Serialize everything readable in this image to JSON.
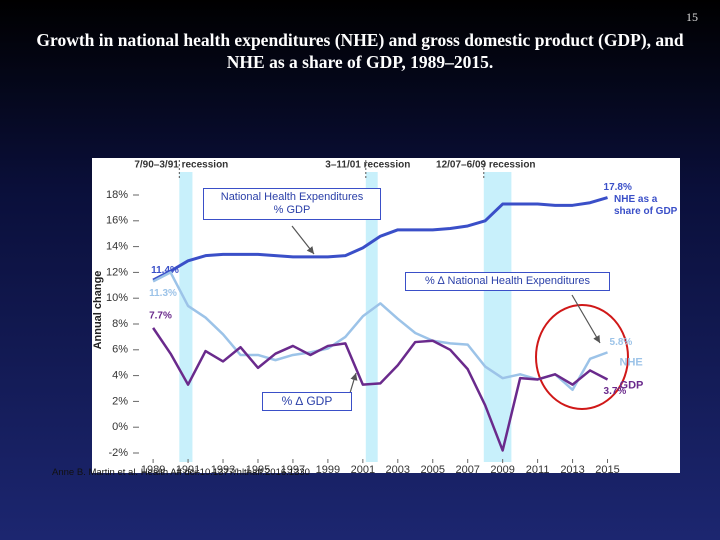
{
  "page_number": "15",
  "title": "Growth in national health expenditures (NHE) and gross domestic product (GDP), and NHE as a share of GDP, 1989–2015.",
  "source": "Anne B. Martin et al. Health Aff doi:10.1377/hlthaff.2016.1330",
  "callouts": [
    [
      "National Health Expenditures",
      "% GDP"
    ],
    [
      "% ∆ National Health Expenditures"
    ],
    [
      "% ∆ GDP"
    ]
  ],
  "chart_data": {
    "type": "line",
    "y_label": "Annual change",
    "x": [
      1989,
      1990,
      1991,
      1992,
      1993,
      1994,
      1995,
      1996,
      1997,
      1998,
      1999,
      2000,
      2001,
      2002,
      2003,
      2004,
      2005,
      2006,
      2007,
      2008,
      2009,
      2010,
      2011,
      2012,
      2013,
      2014,
      2015
    ],
    "xlim": [
      1988.25,
      2016
    ],
    "xticks": [
      1989,
      1991,
      1993,
      1995,
      1997,
      1999,
      2001,
      2003,
      2005,
      2007,
      2009,
      2011,
      2013,
      2015
    ],
    "ylim": [
      -2,
      18
    ],
    "yticks": [
      {
        "value": -2,
        "label": "-2%"
      },
      {
        "value": 0,
        "label": "0%"
      },
      {
        "value": 2,
        "label": "2%"
      },
      {
        "value": 4,
        "label": "4%"
      },
      {
        "value": 6,
        "label": "6%"
      },
      {
        "value": 8,
        "label": "8%"
      },
      {
        "value": 10,
        "label": "10%"
      },
      {
        "value": 12,
        "label": "12%"
      },
      {
        "value": 14,
        "label": "14%"
      },
      {
        "value": 16,
        "label": "16%"
      },
      {
        "value": 18,
        "label": "18%"
      }
    ],
    "grid": false,
    "recessions": [
      {
        "label": "7/90–3/91 recession",
        "start": 1990.5,
        "end": 1991.25
      },
      {
        "label": "3–11/01 recession",
        "start": 2001.17,
        "end": 2001.85
      },
      {
        "label": "12/07–6/09 recession",
        "start": 2007.92,
        "end": 2009.5
      }
    ],
    "series": [
      {
        "name": "NHE as a share of GDP",
        "color": "#3a4fc8",
        "values": [
          11.4,
          12.1,
          12.9,
          13.3,
          13.4,
          13.4,
          13.4,
          13.3,
          13.2,
          13.2,
          13.2,
          13.3,
          13.9,
          14.8,
          15.3,
          15.3,
          15.3,
          15.4,
          15.6,
          16.0,
          17.3,
          17.3,
          17.3,
          17.2,
          17.2,
          17.4,
          17.8
        ],
        "value_labels": [
          "11.4%",
          null,
          null,
          null,
          null,
          null,
          null,
          null,
          null,
          null,
          null,
          null,
          null,
          null,
          null,
          null,
          null,
          null,
          null,
          null,
          null,
          null,
          null,
          null,
          null,
          null,
          "17.8%"
        ]
      },
      {
        "name": "NHE",
        "color": "#9cc3e8",
        "values": [
          11.3,
          12.0,
          9.4,
          8.5,
          7.2,
          5.6,
          5.6,
          5.2,
          5.6,
          5.8,
          6.1,
          7.0,
          8.6,
          9.6,
          8.4,
          7.3,
          6.7,
          6.5,
          6.4,
          4.7,
          3.8,
          4.1,
          3.7,
          4.1,
          2.9,
          5.3,
          5.8
        ],
        "value_labels": [
          "11.3%",
          null,
          null,
          null,
          null,
          null,
          null,
          null,
          null,
          null,
          null,
          null,
          null,
          null,
          null,
          null,
          null,
          null,
          null,
          null,
          null,
          null,
          null,
          null,
          null,
          null,
          "5.8%"
        ]
      },
      {
        "name": "GDP",
        "color": "#6a2a8c",
        "values": [
          7.7,
          5.7,
          3.3,
          5.9,
          5.1,
          6.2,
          4.6,
          5.7,
          6.3,
          5.6,
          6.3,
          6.5,
          3.3,
          3.4,
          4.8,
          6.6,
          6.7,
          6.0,
          4.5,
          1.7,
          -1.8,
          3.8,
          3.7,
          4.1,
          3.3,
          4.4,
          3.7
        ],
        "value_labels": [
          "7.7%",
          null,
          null,
          null,
          null,
          null,
          null,
          null,
          null,
          null,
          null,
          null,
          null,
          null,
          null,
          null,
          null,
          null,
          null,
          null,
          null,
          null,
          null,
          null,
          null,
          null,
          "3.7%"
        ]
      }
    ]
  }
}
